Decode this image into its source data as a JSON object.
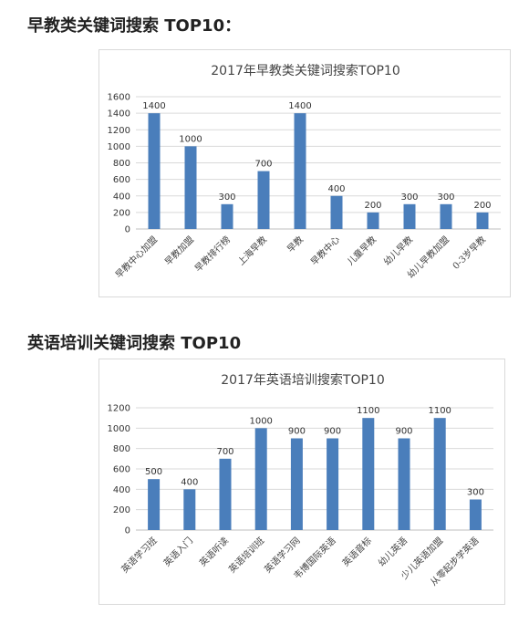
{
  "headings": {
    "section1": "早教类关键词搜索 TOP10：",
    "section2": "英语培训关键词搜索 TOP10"
  },
  "colors": {
    "bar": "#4a7ebb",
    "grid": "#d9d9d9",
    "axis": "#bfbfbf"
  },
  "chart_data": [
    {
      "type": "bar",
      "title": "2017年早教类关键词搜索TOP10",
      "xlabel": "",
      "ylabel": "",
      "ylim": [
        0,
        1600
      ],
      "yticks": [
        0,
        200,
        400,
        600,
        800,
        1000,
        1200,
        1400,
        1600
      ],
      "grid": true,
      "categories": [
        "早教中心加盟",
        "早教加盟",
        "早教排行榜",
        "上海早教",
        "早教",
        "早教中心",
        "儿童早教",
        "幼儿早教",
        "幼儿早教加盟",
        "0-3岁早教"
      ],
      "values": [
        1400,
        1000,
        300,
        700,
        1400,
        400,
        200,
        300,
        300,
        200
      ]
    },
    {
      "type": "bar",
      "title": "2017年英语培训搜索TOP10",
      "xlabel": "",
      "ylabel": "",
      "ylim": [
        0,
        1200
      ],
      "yticks": [
        0,
        200,
        400,
        600,
        800,
        1000,
        1200
      ],
      "grid": true,
      "categories": [
        "英语学习班",
        "英语入门",
        "英语听读",
        "英语培训班",
        "英语学习网",
        "韦博国际英语",
        "英语音标",
        "幼儿英语",
        "少儿英语加盟",
        "从零起步学英语"
      ],
      "values": [
        500,
        400,
        700,
        1000,
        900,
        900,
        1100,
        900,
        1100,
        300
      ]
    }
  ]
}
